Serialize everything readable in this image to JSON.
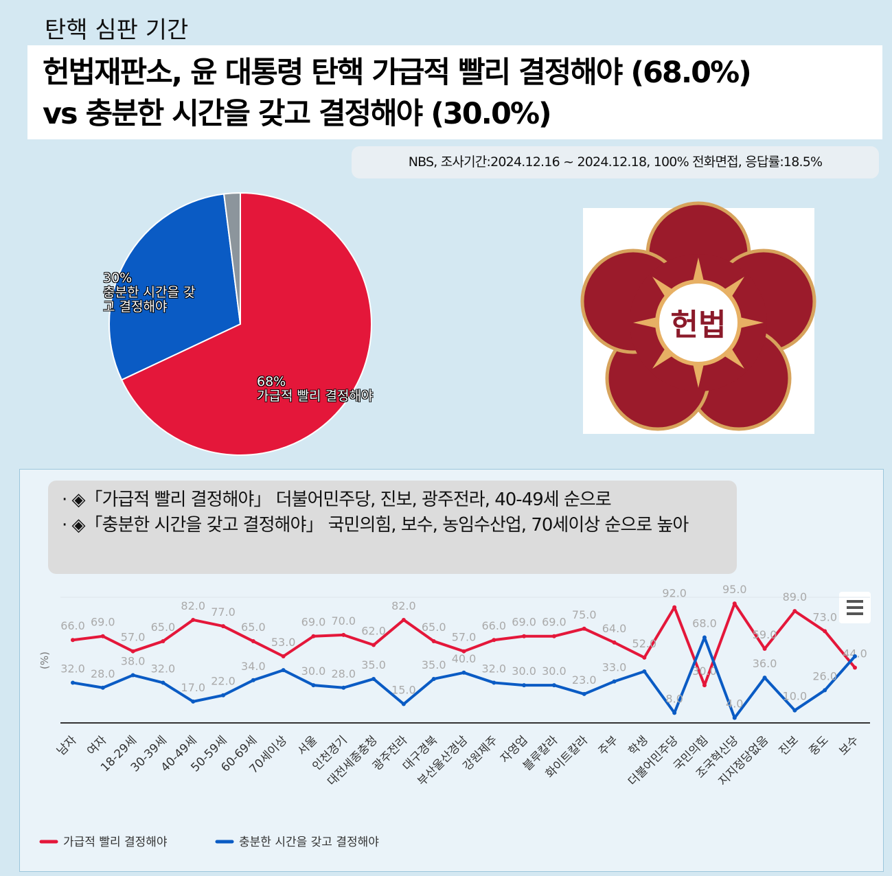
{
  "header": {
    "tag": "탄핵 심판 기간",
    "title_lines": [
      "헌법재판소, 윤 대통령 탄핵 가급적 빨리 결정해야 (68.0%)",
      "vs 충분한 시간을 갖고 결정해야 (30.0%)"
    ],
    "source": "NBS, 조사기간:2024.12.16 ~ 2024.12.18, 100% 전화면접, 응답률:18.5%"
  },
  "emblem": {
    "label": "헌법"
  },
  "notes": [
    "· ◈「가급적 빨리 결정해야」 더불어민주당, 진보, 광주전라, 40-49세 순으로",
    "· ◈「충분한 시간을 갖고 결정해야」 국민의힘, 보수, 농임수산업, 70세이상 순으로 높아"
  ],
  "chart_data": [
    {
      "type": "pie",
      "categories": [
        "가급적 빨리 결정해야",
        "충분한 시간을 갖고 결정해야",
        null
      ],
      "values": [
        68,
        30,
        2
      ],
      "value_labels": [
        "68%",
        "30%",
        null
      ],
      "colors": [
        "#e4173a",
        "#0a5bc4",
        "#8c959c"
      ]
    },
    {
      "type": "line",
      "y_label": "(%)",
      "categories": [
        "남자",
        "여자",
        "18-29세",
        "30-39세",
        "40-49세",
        "50-59세",
        "60-69세",
        "70세이상",
        "서울",
        "인천경기",
        "대전세종충청",
        "광주전라",
        "대구경북",
        "부산울산경남",
        "강원제주",
        "자영업",
        "블루칼라",
        "화이트칼라",
        "주부",
        "학생",
        "더불어민주당",
        "국민의힘",
        "조국혁신당",
        "지지정당없음",
        "진보",
        "중도",
        "보수"
      ],
      "ylim": [
        0,
        100
      ],
      "legend": "bottom-left",
      "series": [
        {
          "name": "가급적 빨리 결정해야",
          "color": "#e4173a",
          "values": [
            66,
            69,
            57,
            65,
            82,
            77,
            65,
            53,
            69,
            70,
            62,
            82,
            65,
            57,
            66,
            69,
            69,
            75,
            64,
            52,
            92,
            30,
            95,
            59,
            89,
            73,
            44
          ],
          "value_labels": [
            "66.0",
            "69.0",
            "57.0",
            "65.0",
            "82.0",
            "77.0",
            "65.0",
            "53.0",
            "69.0",
            "70.0",
            "62.0",
            "82.0",
            "65.0",
            "57.0",
            "66.0",
            "69.0",
            "69.0",
            "75.0",
            "64.0",
            "52.0",
            "92.0",
            "30.0",
            "95.0",
            "59.0",
            "89.0",
            "73.0",
            "44.0"
          ]
        },
        {
          "name": "충분한 시간을 갖고 결정해야",
          "color": "#0a5bc4",
          "values": [
            32,
            28,
            38,
            32,
            17,
            22,
            34,
            42,
            30,
            28,
            35,
            15,
            35,
            40,
            32,
            30,
            30,
            23,
            33,
            41,
            8,
            68,
            4,
            36,
            10,
            26,
            53
          ],
          "value_labels": [
            "32.0",
            "28.0",
            "38.0",
            "32.0",
            "17.0",
            "22.0",
            "34.0",
            null,
            "30.0",
            "28.0",
            "35.0",
            "15.0",
            "35.0",
            "40.0",
            "32.0",
            "30.0",
            "30.0",
            "23.0",
            "33.0",
            null,
            "8.0",
            "68.0",
            "4.0",
            "36.0",
            "10.0",
            "26.0",
            null
          ]
        }
      ]
    }
  ]
}
